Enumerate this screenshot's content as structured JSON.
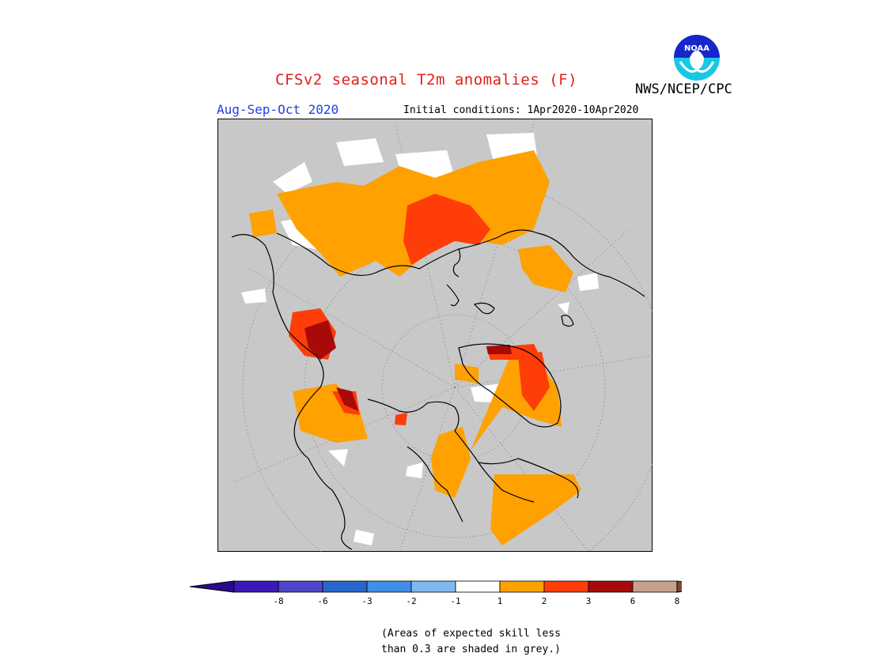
{
  "title": "CFSv2 seasonal T2m anomalies (F)",
  "organization": "NWS/NCEP/CPC",
  "logo_text": "NOAA",
  "season": "Aug-Sep-Oct 2020",
  "initial_conditions": "Initial conditions: 1Apr2020-10Apr2020",
  "colorbar": {
    "bins": [
      {
        "color": "#3b18b8"
      },
      {
        "color": "#4d45c9"
      },
      {
        "color": "#2767cc"
      },
      {
        "color": "#3f8fe8"
      },
      {
        "color": "#7db9f0"
      },
      {
        "color": "#ffffff"
      },
      {
        "color": "#ffa100"
      },
      {
        "color": "#ff3d08"
      },
      {
        "color": "#a80a0a"
      },
      {
        "color": "#c8a08e"
      }
    ],
    "under_color": "#2a0a8a",
    "over_color": "#7a4a34",
    "ticks": [
      "-8",
      "-6",
      "-3",
      "-2",
      "-1",
      "1",
      "2",
      "3",
      "6",
      "8"
    ]
  },
  "note_line1": "(Areas of expected skill less",
  "note_line2": "than 0.3 are shaded in grey.)",
  "colors": {
    "grey": "#c8c8c8",
    "orange": "#ffa100",
    "red": "#ff3d08",
    "darkred": "#a80a0a",
    "white": "#ffffff"
  }
}
